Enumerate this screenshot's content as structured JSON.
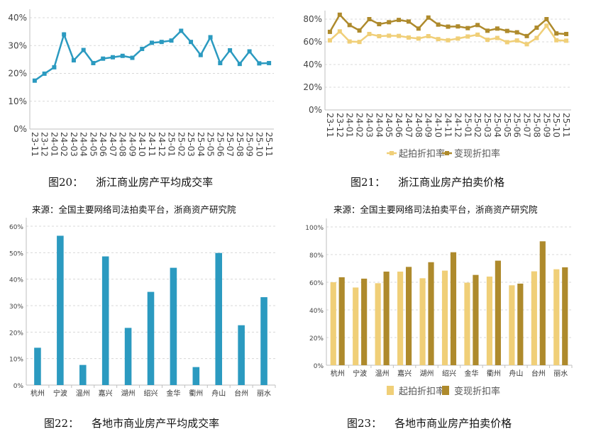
{
  "colors": {
    "blue": "#2b9ac0",
    "light_gold": "#f0cf78",
    "dark_gold": "#ae8a2c",
    "grid": "#d8d8d8",
    "axis": "#bfbfbf",
    "tick_text": "#444444"
  },
  "captions": {
    "fig20": {
      "num": "图20：",
      "title": "浙江商业房产平均成交率"
    },
    "fig21": {
      "num": "图21：",
      "title": "浙江商业房产拍卖价格"
    },
    "fig22": {
      "num": "图22：",
      "title": "各地市商业房产平均成交率"
    },
    "fig23": {
      "num": "图23：",
      "title": "各地市商业房产拍卖价格"
    }
  },
  "sources": {
    "left": "来源：全国主要网络司法拍卖平台，浙商资产研究院",
    "right": "来源：全国主要网络司法拍卖平台，浙商资产研究院"
  },
  "chart_data": [
    {
      "type": "line",
      "x": [
        "23-11",
        "23-12",
        "24-01",
        "24-02",
        "24-03",
        "24-04",
        "24-05",
        "24-06",
        "24-07",
        "24-08",
        "24-09",
        "24-10",
        "24-11",
        "24-12",
        "25-01",
        "25-02",
        "25-03",
        "25-04",
        "25-05",
        "25-06",
        "25-07",
        "25-08",
        "25-09",
        "25-10",
        "25-11"
      ],
      "series": [
        {
          "values": [
            17.4,
            19.9,
            22.2,
            34.0,
            24.7,
            28.4,
            23.7,
            25.3,
            25.8,
            26.3,
            25.6,
            28.8,
            31.0,
            31.3,
            31.8,
            35.3,
            31.3,
            26.6,
            33.0,
            23.7,
            28.3,
            23.4,
            27.9,
            23.6,
            23.7
          ],
          "color": "#2b9ac0"
        }
      ],
      "yticks": [
        "0%",
        "10%",
        "20%",
        "30%",
        "40%"
      ],
      "ylim": [
        0,
        40
      ],
      "grid": true,
      "unit": "%"
    },
    {
      "type": "line",
      "x": [
        "23-11",
        "23-12",
        "24-01",
        "24-02",
        "24-03",
        "24-04",
        "24-05",
        "24-06",
        "24-07",
        "24-08",
        "24-09",
        "24-10",
        "24-11",
        "24-12",
        "25-01",
        "25-02",
        "25-03",
        "25-04",
        "25-05",
        "25-06",
        "25-07",
        "25-08",
        "25-09",
        "25-10",
        "25-11"
      ],
      "series": [
        {
          "name": "起拍折扣率",
          "color": "#f0cf78",
          "values": [
            61.3,
            69.2,
            60.3,
            59.9,
            66.9,
            65.0,
            65.4,
            65.2,
            63.8,
            62.9,
            65.0,
            62.4,
            61.4,
            62.9,
            64.7,
            66.3,
            61.8,
            63.4,
            59.7,
            61.2,
            57.9,
            63.4,
            74.2,
            61.4,
            61.0
          ]
        },
        {
          "name": "变现折扣率",
          "color": "#ae8a2c",
          "values": [
            68.8,
            83.9,
            74.8,
            70.0,
            80.0,
            75.6,
            77.3,
            79.3,
            77.9,
            71.7,
            81.4,
            75.2,
            73.4,
            73.6,
            72.1,
            74.8,
            69.8,
            71.7,
            69.6,
            68.4,
            65.1,
            72.5,
            80.0,
            67.4,
            66.9
          ]
        }
      ],
      "yticks": [
        "0%",
        "20%",
        "40%",
        "60%",
        "80%"
      ],
      "ylim": [
        0,
        90
      ],
      "grid": true,
      "legend": "bottom",
      "unit": "%"
    },
    {
      "type": "bar",
      "categories": [
        "杭州",
        "宁波",
        "温州",
        "嘉兴",
        "湖州",
        "绍兴",
        "金华",
        "衢州",
        "舟山",
        "台州",
        "丽水"
      ],
      "series": [
        {
          "color": "#2b9ac0",
          "values": [
            14.1,
            56.4,
            7.6,
            48.6,
            21.6,
            35.2,
            44.3,
            6.8,
            49.9,
            22.6,
            33.2
          ]
        }
      ],
      "yticks": [
        "0%",
        "10%",
        "20%",
        "30%",
        "40%",
        "50%",
        "60%"
      ],
      "ylim": [
        0,
        60
      ],
      "grid": true,
      "unit": "%"
    },
    {
      "type": "bar",
      "categories": [
        "杭州",
        "宁波",
        "温州",
        "嘉兴",
        "湖州",
        "绍兴",
        "金华",
        "衢州",
        "舟山",
        "台州",
        "丽水"
      ],
      "series": [
        {
          "name": "起拍折扣率",
          "color": "#f0cf78",
          "values": [
            60.0,
            56.2,
            59.3,
            67.7,
            62.9,
            68.4,
            59.7,
            64.1,
            57.8,
            67.9,
            69.4
          ]
        },
        {
          "name": "变现折扣率",
          "color": "#ae8a2c",
          "values": [
            63.6,
            62.6,
            67.7,
            71.1,
            74.5,
            81.7,
            65.3,
            75.6,
            59.0,
            89.6,
            70.8
          ]
        }
      ],
      "yticks": [
        "0%",
        "20%",
        "40%",
        "60%",
        "80%",
        "100%"
      ],
      "ylim": [
        0,
        100
      ],
      "grid": true,
      "legend": "bottom",
      "unit": "%"
    }
  ]
}
